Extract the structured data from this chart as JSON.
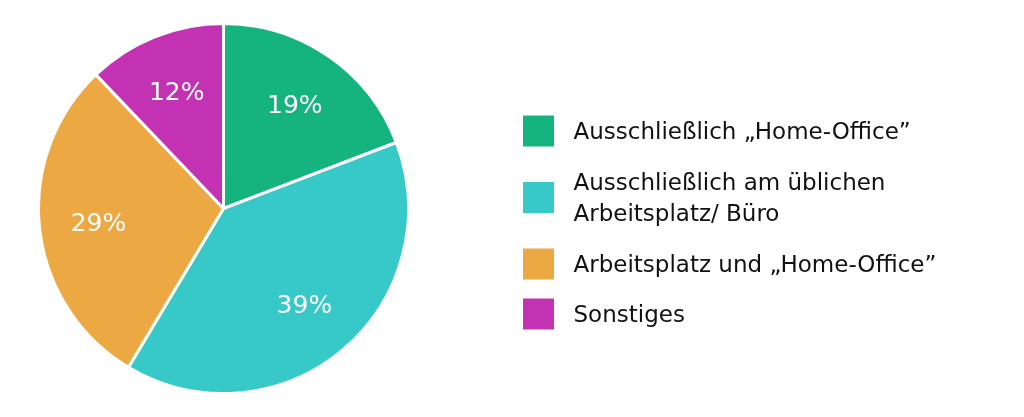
{
  "chart_data": {
    "type": "pie",
    "categories": [
      "Ausschließlich „Home-Office”",
      "Ausschließlich am üblichen Arbeitsplatz/ Büro",
      "Arbeitsplatz und „Home-Office”",
      "Sonstiges"
    ],
    "values": [
      19,
      39,
      29,
      12
    ],
    "colors": [
      "#15b47e",
      "#37c9c8",
      "#eca843",
      "#c432b4"
    ],
    "value_labels": [
      "19%",
      "39%",
      "29%",
      "12%"
    ],
    "legend": "right"
  }
}
